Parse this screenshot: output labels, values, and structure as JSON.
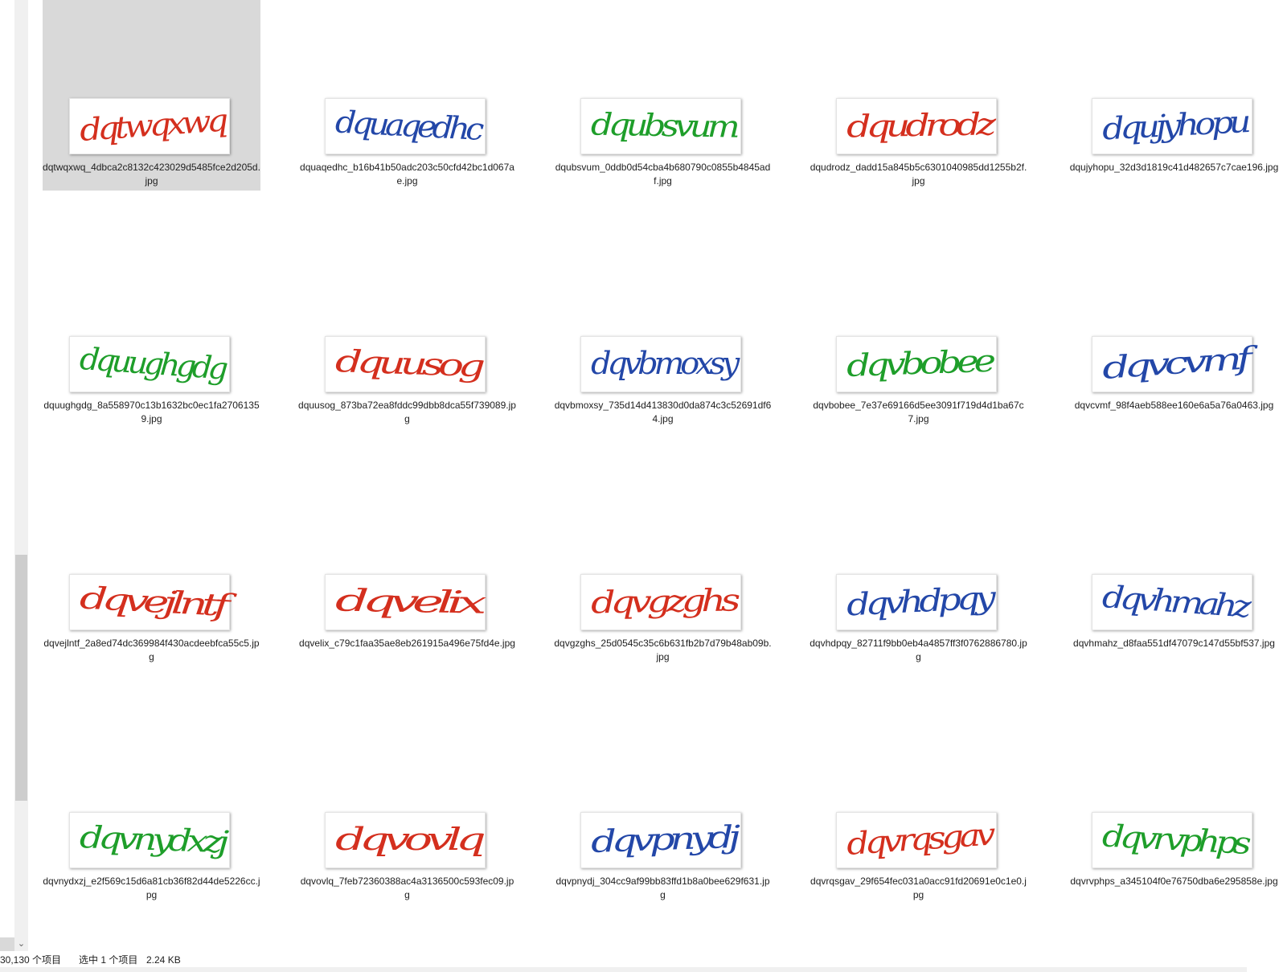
{
  "files": [
    {
      "name": "dqtwqxwq_4dbca2c8132c423029d5485fce2d205d.jpg",
      "captcha": "dqtwqxwq",
      "color": "#d42f1e",
      "selected": true
    },
    {
      "name": "dquaqedhc_b16b41b50adc203c50cfd42bc1d067ae.jpg",
      "captcha": "dquaqedhc",
      "color": "#2347a8",
      "selected": false
    },
    {
      "name": "dqubsvum_0ddb0d54cba4b680790c0855b4845adf.jpg",
      "captcha": "dqubsvum",
      "color": "#1e9e2a",
      "selected": false
    },
    {
      "name": "dqudrodz_dadd15a845b5c6301040985dd1255b2f.jpg",
      "captcha": "dqudrodz",
      "color": "#d42f1e",
      "selected": false
    },
    {
      "name": "dqujyhopu_32d3d1819c41d482657c7cae196.jpg",
      "captcha": "dqujyhopu",
      "color": "#2347a8",
      "selected": false
    },
    {
      "name": "dquughgdg_8a558970c13b1632bc0ec1fa27061359.jpg",
      "captcha": "dquughgdg",
      "color": "#1e9e2a",
      "selected": false
    },
    {
      "name": "dquusog_873ba72ea8fddc99dbb8dca55f739089.jpg",
      "captcha": "dquusog",
      "color": "#d42f1e",
      "selected": false
    },
    {
      "name": "dqvbmoxsy_735d14d413830d0da874c3c52691df64.jpg",
      "captcha": "dqvbmoxsy",
      "color": "#2347a8",
      "selected": false
    },
    {
      "name": "dqvbobee_7e37e69166d5ee3091f719d4d1ba67c7.jpg",
      "captcha": "dqvbobee",
      "color": "#1e9e2a",
      "selected": false
    },
    {
      "name": "dqvcvmf_98f4aeb588ee160e6a5a76a0463.jpg",
      "captcha": "dqvcvmf",
      "color": "#2347a8",
      "selected": false
    },
    {
      "name": "dqvejlntf_2a8ed74dc369984f430acdeebfca55c5.jpg",
      "captcha": "dqvejlntf",
      "color": "#d42f1e",
      "selected": false
    },
    {
      "name": "dqvelix_c79c1faa35ae8eb261915a496e75fd4e.jpg",
      "captcha": "dqvelix",
      "color": "#d42f1e",
      "selected": false
    },
    {
      "name": "dqvgzghs_25d0545c35c6b631fb2b7d79b48ab09b.jpg",
      "captcha": "dqvgzghs",
      "color": "#d42f1e",
      "selected": false
    },
    {
      "name": "dqvhdpqy_82711f9bb0eb4a4857ff3f0762886780.jpg",
      "captcha": "dqvhdpqy",
      "color": "#2347a8",
      "selected": false
    },
    {
      "name": "dqvhmahz_d8faa551df47079c147d55bf537.jpg",
      "captcha": "dqvhmahz",
      "color": "#2347a8",
      "selected": false
    },
    {
      "name": "dqvnydxzj_e2f569c15d6a81cb36f82d44de5226cc.jpg",
      "captcha": "dqvnydxzj",
      "color": "#1e9e2a",
      "selected": false
    },
    {
      "name": "dqvovlq_7feb72360388ac4a3136500c593fec09.jpg",
      "captcha": "dqvovlq",
      "color": "#d42f1e",
      "selected": false
    },
    {
      "name": "dqvpnydj_304cc9af99bb83ffd1b8a0bee629f631.jpg",
      "captcha": "dqvpnydj",
      "color": "#2347a8",
      "selected": false
    },
    {
      "name": "dqvrqsgav_29f654fec031a0acc91fd20691e0c1e0.jpg",
      "captcha": "dqvrqsgav",
      "color": "#d42f1e",
      "selected": false
    },
    {
      "name": "dqvrvphps_a345104f0e76750dba6e295858e.jpg",
      "captcha": "dqvrvphps",
      "color": "#1e9e2a",
      "selected": false
    }
  ],
  "status": {
    "item_count": "30,130 个项目",
    "selection": "选中 1 个项目",
    "size": "2.24 KB"
  },
  "scrollbar": {
    "down_arrow": "⌄"
  }
}
